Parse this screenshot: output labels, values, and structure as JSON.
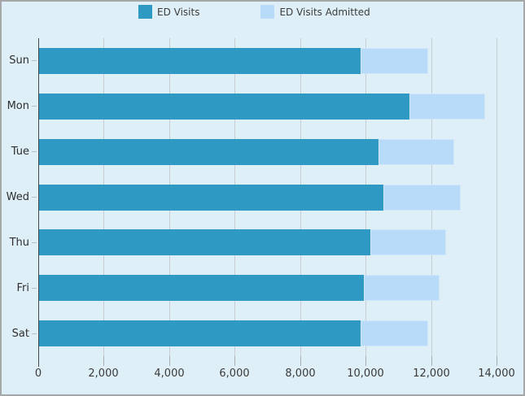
{
  "colors": {
    "background": "#dfeff7",
    "panel_border": "#a5a7a9",
    "series_ed_visits": "#2e9ac3",
    "series_ed_visits_admitted": "#b7dbf8",
    "gridline": "#c8cdd2",
    "axis_line": "#45494d",
    "text": "#3a3a3a"
  },
  "chart_data": {
    "type": "bar",
    "orientation": "horizontal",
    "stacked": true,
    "title": "",
    "xlabel": "",
    "ylabel": "",
    "categories": [
      "Sun",
      "Mon",
      "Tue",
      "Wed",
      "Thu",
      "Fri",
      "Sat"
    ],
    "series": [
      {
        "name": "ED Visits",
        "color": "#2e9ac3",
        "values": [
          9850,
          11350,
          10400,
          10550,
          10150,
          9950,
          9850
        ]
      },
      {
        "name": "ED Visits Admitted",
        "color": "#b7dbf8",
        "values": [
          2050,
          2300,
          2300,
          2350,
          2300,
          2300,
          2050
        ]
      }
    ],
    "stacked_totals": [
      11900,
      13650,
      12700,
      12900,
      12450,
      12250,
      11900
    ],
    "xlim": [
      0,
      14750
    ],
    "x_ticks": [
      0,
      2000,
      4000,
      6000,
      8000,
      10000,
      12000,
      14000
    ],
    "x_tick_labels": [
      "0",
      "2,000",
      "4,000",
      "6,000",
      "8,000",
      "10,000",
      "12,000",
      "14,000"
    ],
    "grid": "vertical",
    "legend_position": "top"
  }
}
